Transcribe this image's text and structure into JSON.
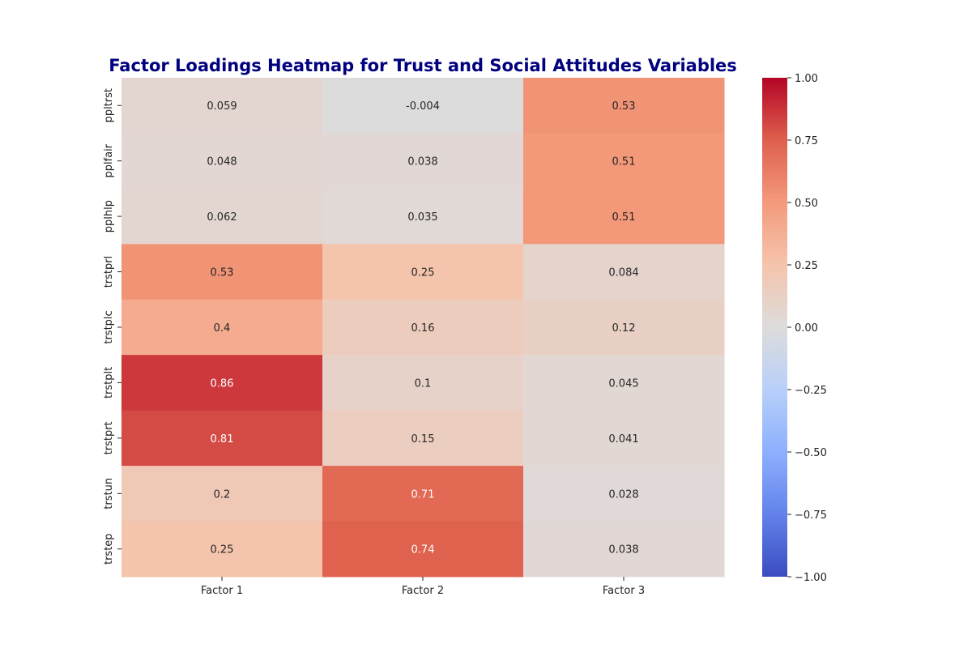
{
  "chart_data": {
    "type": "heatmap",
    "title": "Factor Loadings Heatmap for Trust and Social Attitudes Variables",
    "title_color": "#00007f",
    "x_categories": [
      "Factor 1",
      "Factor 2",
      "Factor 3"
    ],
    "y_categories": [
      "ppltrst",
      "pplfair",
      "pplhlp",
      "trstprl",
      "trstplc",
      "trstplt",
      "trstprt",
      "trstun",
      "trstep"
    ],
    "values": [
      [
        0.059,
        -0.004,
        0.53
      ],
      [
        0.048,
        0.038,
        0.51
      ],
      [
        0.062,
        0.035,
        0.51
      ],
      [
        0.53,
        0.25,
        0.084
      ],
      [
        0.4,
        0.16,
        0.12
      ],
      [
        0.86,
        0.1,
        0.045
      ],
      [
        0.81,
        0.15,
        0.041
      ],
      [
        0.2,
        0.71,
        0.028
      ],
      [
        0.25,
        0.74,
        0.038
      ]
    ],
    "value_labels": [
      [
        "0.059",
        "-0.004",
        "0.53"
      ],
      [
        "0.048",
        "0.038",
        "0.51"
      ],
      [
        "0.062",
        "0.035",
        "0.51"
      ],
      [
        "0.53",
        "0.25",
        "0.084"
      ],
      [
        "0.4",
        "0.16",
        "0.12"
      ],
      [
        "0.86",
        "0.1",
        "0.045"
      ],
      [
        "0.81",
        "0.15",
        "0.041"
      ],
      [
        "0.2",
        "0.71",
        "0.028"
      ],
      [
        "0.25",
        "0.74",
        "0.038"
      ]
    ],
    "colormap": "coolwarm",
    "vmin": -1.0,
    "vmax": 1.0,
    "colorbar": {
      "ticks": [
        1.0,
        0.75,
        0.5,
        0.25,
        0.0,
        -0.25,
        -0.5,
        -0.75,
        -1.0
      ],
      "tick_labels": [
        "1.00",
        "0.75",
        "0.50",
        "0.25",
        "0.00",
        "−0.25",
        "−0.50",
        "−0.75",
        "−1.00"
      ]
    },
    "grid": false,
    "annotated": true
  }
}
